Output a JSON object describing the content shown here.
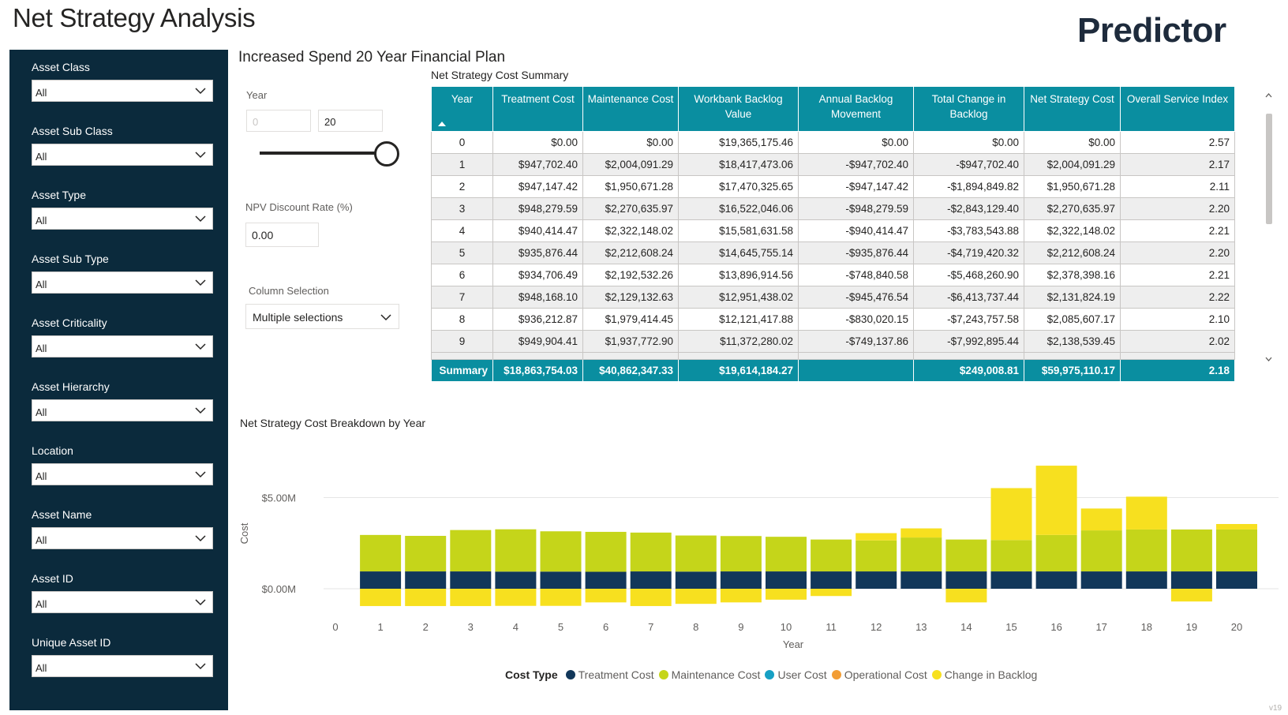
{
  "header": {
    "title": "Net Strategy Analysis",
    "brand": "Predictor",
    "version": "v19"
  },
  "sidebar": {
    "filters": [
      {
        "label": "Asset Class",
        "value": "All"
      },
      {
        "label": "Asset Sub Class",
        "value": "All"
      },
      {
        "label": "Asset Type",
        "value": "All"
      },
      {
        "label": "Asset Sub Type",
        "value": "All"
      },
      {
        "label": "Asset Criticality",
        "value": "All"
      },
      {
        "label": "Asset Hierarchy",
        "value": "All"
      },
      {
        "label": "Location",
        "value": "All"
      },
      {
        "label": "Asset Name",
        "value": "All"
      },
      {
        "label": "Asset ID",
        "value": "All"
      },
      {
        "label": "Unique Asset ID",
        "value": "All"
      }
    ]
  },
  "plan": {
    "title": "Increased Spend 20 Year Financial Plan",
    "year_label": "Year",
    "year_min": "0",
    "year_max": "20",
    "npv_label": "NPV Discount Rate (%)",
    "npv_value": "0.00",
    "column_label": "Column Selection",
    "column_value": "Multiple selections"
  },
  "table": {
    "title": "Net Strategy Cost Summary",
    "headers": [
      "Year",
      "Treatment Cost",
      "Maintenance Cost",
      "Workbank Backlog Value",
      "Annual Backlog Movement",
      "Total Change in Backlog",
      "Net Strategy Cost",
      "Overall Service Index"
    ],
    "rows": [
      [
        "0",
        "$0.00",
        "$0.00",
        "$19,365,175.46",
        "$0.00",
        "$0.00",
        "$0.00",
        "2.57"
      ],
      [
        "1",
        "$947,702.40",
        "$2,004,091.29",
        "$18,417,473.06",
        "-$947,702.40",
        "-$947,702.40",
        "$2,004,091.29",
        "2.17"
      ],
      [
        "2",
        "$947,147.42",
        "$1,950,671.28",
        "$17,470,325.65",
        "-$947,147.42",
        "-$1,894,849.82",
        "$1,950,671.28",
        "2.11"
      ],
      [
        "3",
        "$948,279.59",
        "$2,270,635.97",
        "$16,522,046.06",
        "-$948,279.59",
        "-$2,843,129.40",
        "$2,270,635.97",
        "2.20"
      ],
      [
        "4",
        "$940,414.47",
        "$2,322,148.02",
        "$15,581,631.58",
        "-$940,414.47",
        "-$3,783,543.88",
        "$2,322,148.02",
        "2.21"
      ],
      [
        "5",
        "$935,876.44",
        "$2,212,608.24",
        "$14,645,755.14",
        "-$935,876.44",
        "-$4,719,420.32",
        "$2,212,608.24",
        "2.20"
      ],
      [
        "6",
        "$934,706.49",
        "$2,192,532.26",
        "$13,896,914.56",
        "-$748,840.58",
        "-$5,468,260.90",
        "$2,378,398.16",
        "2.21"
      ],
      [
        "7",
        "$948,168.10",
        "$2,129,132.63",
        "$12,951,438.02",
        "-$945,476.54",
        "-$6,413,737.44",
        "$2,131,824.19",
        "2.22"
      ],
      [
        "8",
        "$936,212.87",
        "$1,979,414.45",
        "$12,121,417.88",
        "-$830,020.15",
        "-$7,243,757.58",
        "$2,085,607.17",
        "2.10"
      ],
      [
        "9",
        "$949,904.41",
        "$1,937,772.90",
        "$11,372,280.02",
        "-$749,137.86",
        "-$7,992,895.44",
        "$2,138,539.45",
        "2.02"
      ]
    ],
    "summary": [
      "Summary",
      "$18,863,754.03",
      "$40,862,347.33",
      "$19,614,184.27",
      "",
      "$249,008.81",
      "$59,975,110.17",
      "2.18"
    ]
  },
  "chart_data": {
    "type": "bar",
    "title": "Net Strategy Cost Breakdown by Year",
    "xlabel": "Year",
    "ylabel": "Cost",
    "categories": [
      "0",
      "1",
      "2",
      "3",
      "4",
      "5",
      "6",
      "7",
      "8",
      "9",
      "10",
      "11",
      "12",
      "13",
      "14",
      "15",
      "16",
      "17",
      "18",
      "19",
      "20"
    ],
    "y_ticks": [
      {
        "value": 0,
        "label": "$0.00M"
      },
      {
        "value": 5,
        "label": "$5.00M"
      }
    ],
    "ylim": [
      -1.3,
      6.7
    ],
    "stacked": true,
    "grid": true,
    "legend_position": "bottom",
    "legend_title": "Cost Type",
    "series": [
      {
        "name": "Treatment Cost",
        "color": "#12375a",
        "values": [
          0,
          0.95,
          0.95,
          0.95,
          0.94,
          0.94,
          0.93,
          0.95,
          0.94,
          0.95,
          0.95,
          0.95,
          0.95,
          0.95,
          0.95,
          0.95,
          0.95,
          0.95,
          0.95,
          0.95,
          0.95
        ]
      },
      {
        "name": "Maintenance Cost",
        "color": "#c5d51a",
        "values": [
          0,
          2.0,
          1.95,
          2.27,
          2.32,
          2.21,
          2.19,
          2.13,
          1.98,
          1.94,
          1.9,
          1.75,
          1.7,
          1.86,
          1.75,
          1.72,
          2.0,
          2.25,
          2.3,
          2.3,
          2.3
        ]
      },
      {
        "name": "User Cost",
        "color": "#17a0c4",
        "values": [
          0,
          0,
          0,
          0,
          0,
          0,
          0,
          0,
          0,
          0,
          0,
          0,
          0,
          0,
          0,
          0,
          0,
          0,
          0,
          0,
          0
        ]
      },
      {
        "name": "Operational Cost",
        "color": "#f29d35",
        "values": [
          0,
          0,
          0,
          0,
          0,
          0,
          0,
          0,
          0,
          0,
          0,
          0,
          0,
          0,
          0,
          0,
          0,
          0,
          0,
          0,
          0
        ]
      },
      {
        "name": "Change in Backlog",
        "color": "#f7e01f",
        "values": [
          0,
          -0.95,
          -0.95,
          -0.95,
          -0.94,
          -0.94,
          -0.75,
          -0.95,
          -0.83,
          -0.75,
          -0.6,
          -0.4,
          0.4,
          0.5,
          -0.75,
          2.85,
          3.8,
          1.2,
          1.8,
          -0.7,
          0.3
        ]
      }
    ]
  }
}
